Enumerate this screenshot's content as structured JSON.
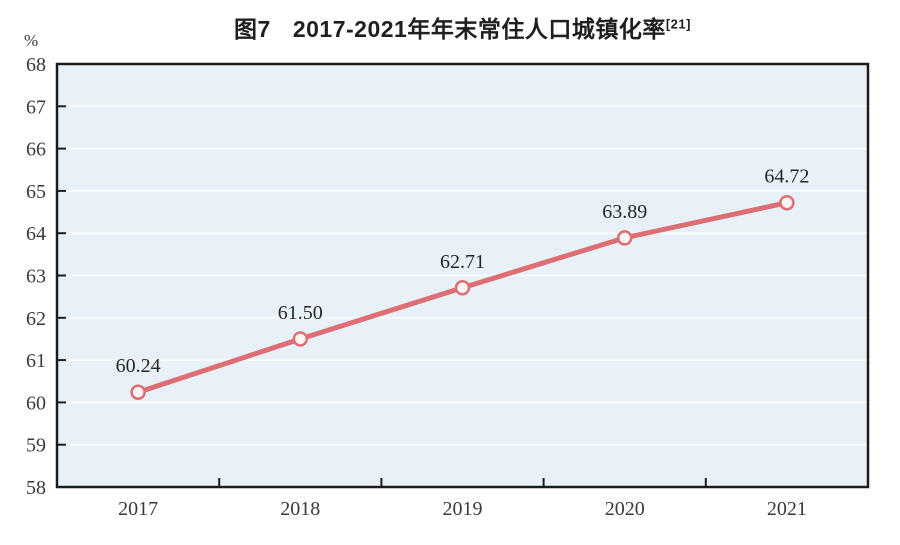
{
  "header": {
    "figure_label": "图7",
    "title": "2017-2021年年末常住人口城镇化率",
    "note_ref": "[21]"
  },
  "chart_data": {
    "type": "line",
    "title": "图7 2017-2021年年末常住人口城镇化率[21]",
    "categories": [
      "2017",
      "2018",
      "2019",
      "2020",
      "2021"
    ],
    "series": [
      {
        "name": "年末常住人口城镇化率",
        "values": [
          60.24,
          61.5,
          62.71,
          63.89,
          64.72
        ]
      }
    ],
    "data_labels": [
      "60.24",
      "61.50",
      "62.71",
      "63.89",
      "64.72"
    ],
    "ylabel_unit": "%",
    "ylim": [
      58,
      68
    ],
    "ytick_step": 1,
    "grid": true,
    "legend": "none",
    "colors": {
      "line": "#dd6e73",
      "marker_fill": "#fdf5f5",
      "plot_bg": "#e9f1f8",
      "grid_line": "#fafcfe",
      "axis": "#1c1c1c",
      "tick_text": "#3a3a3a",
      "label_text": "#262626"
    }
  }
}
